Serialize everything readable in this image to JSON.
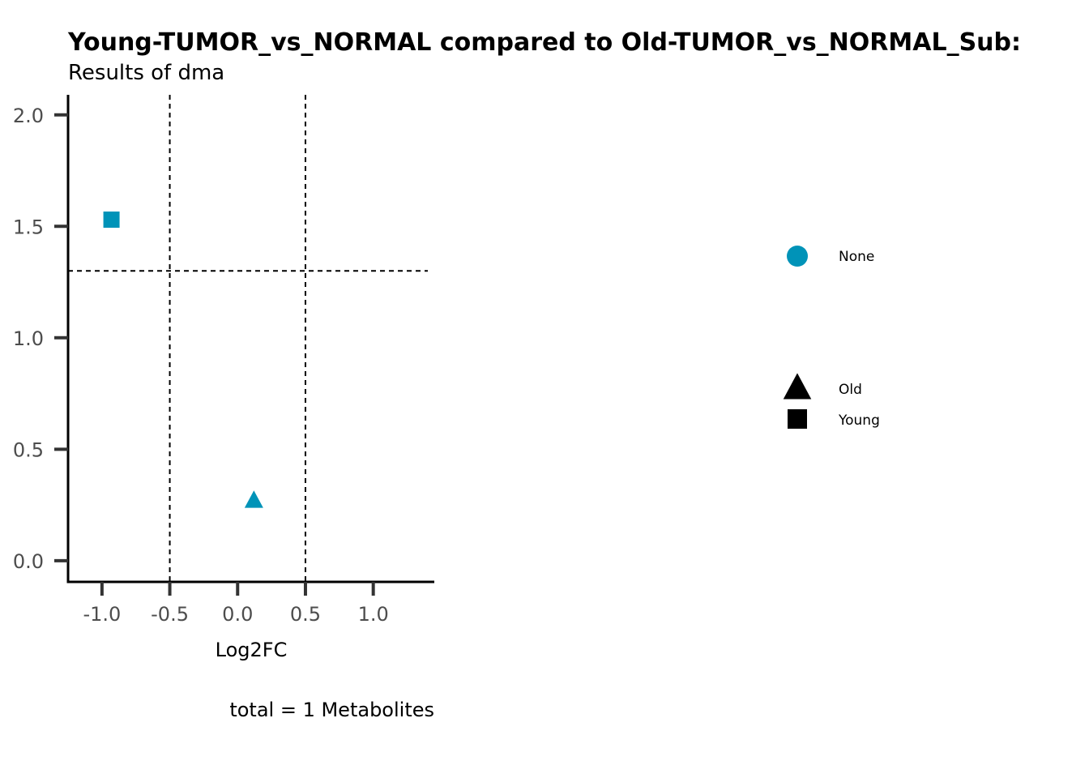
{
  "chart_data": {
    "type": "scatter",
    "title": "Young-TUMOR_vs_NORMAL compared to Old-TUMOR_vs_NORMAL_Sub:",
    "subtitle": "Results of dma",
    "xlabel": "Log2FC",
    "ylabel": "",
    "caption": "total = 1 Metabolites",
    "xlim": [
      -1.25,
      1.45
    ],
    "ylim": [
      -0.095,
      2.09
    ],
    "xticks": [
      -1.0,
      -0.5,
      0.0,
      0.5,
      1.0
    ],
    "xtick_labels": [
      "-1.0",
      "-0.5",
      "0.0",
      "0.5",
      "1.0"
    ],
    "yticks": [
      0.0,
      0.5,
      1.0,
      1.5,
      2.0
    ],
    "ytick_labels": [
      "0.0",
      "0.5",
      "1.0",
      "1.5",
      "2.0"
    ],
    "threshold_lines": {
      "vertical": [
        -0.5,
        0.5
      ],
      "horizontal": [
        1.3
      ]
    },
    "grid": false,
    "points": [
      {
        "x": -0.93,
        "y": 1.53,
        "shape": "square",
        "color_group": "None"
      },
      {
        "x": 0.12,
        "y": 0.27,
        "shape": "triangle",
        "color_group": "None"
      }
    ],
    "point_color": "#0093b8",
    "legend": {
      "position": "right",
      "color_entries": [
        {
          "label": "None",
          "shape": "circle",
          "color": "#0093b8"
        }
      ],
      "shape_entries": [
        {
          "label": "Old",
          "shape": "triangle",
          "color": "#000000"
        },
        {
          "label": "Young",
          "shape": "square",
          "color": "#000000"
        }
      ]
    }
  }
}
